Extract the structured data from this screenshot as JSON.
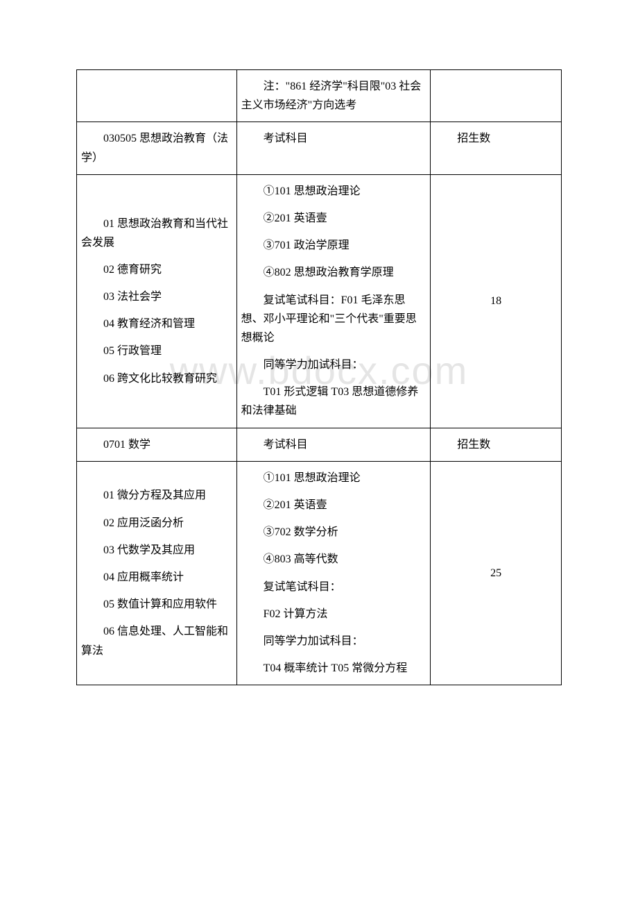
{
  "table": {
    "columns": [
      "col1",
      "col2",
      "col3"
    ],
    "border_color": "#000000",
    "background_color": "#ffffff",
    "text_color": "#000000",
    "font_size_pt": 12,
    "rows": [
      {
        "c1": "",
        "c2": {
          "paragraphs": [
            "注：\"861 经济学\"科目限\"03 社会主义市场经济\"方向选考"
          ]
        },
        "c3": ""
      },
      {
        "c1": {
          "paragraphs": [
            "030505 思想政治教育（法学）"
          ]
        },
        "c2_header": "考试科目",
        "c3_header": "招生数"
      },
      {
        "c1": {
          "paragraphs": [
            "01 思想政治教育和当代社会发展",
            "02 德育研究",
            "03 法社会学",
            "04 教育经济和管理",
            "05 行政管理",
            "06 跨文化比较教育研究"
          ]
        },
        "c2": {
          "paragraphs": [
            "①101 思想政治理论",
            "②201 英语壹",
            "③701 政治学原理",
            "④802 思想政治教育学原理",
            "复试笔试科目：F01 毛泽东思想、邓小平理论和\"三个代表\"重要思想概论",
            "同等学力加试科目：",
            "T01 形式逻辑 T03 思想道德修养和法律基础"
          ]
        },
        "c3_value": "18"
      },
      {
        "c1": {
          "paragraphs": [
            "0701 数学"
          ]
        },
        "c2_header": "考试科目",
        "c3_header": "招生数"
      },
      {
        "c1": {
          "paragraphs": [
            "01 微分方程及其应用",
            "02 应用泛函分析",
            "03 代数学及其应用",
            "04 应用概率统计",
            "05 数值计算和应用软件",
            "06 信息处理、人工智能和算法"
          ]
        },
        "c2": {
          "paragraphs": [
            "①101 思想政治理论",
            "②201 英语壹",
            "③702 数学分析",
            "④803 高等代数",
            "复试笔试科目：",
            "F02 计算方法",
            "同等学力加试科目：",
            "T04 概率统计 T05 常微分方程"
          ]
        },
        "c3_value": "25"
      }
    ]
  },
  "watermark": "www.bdocx.com"
}
